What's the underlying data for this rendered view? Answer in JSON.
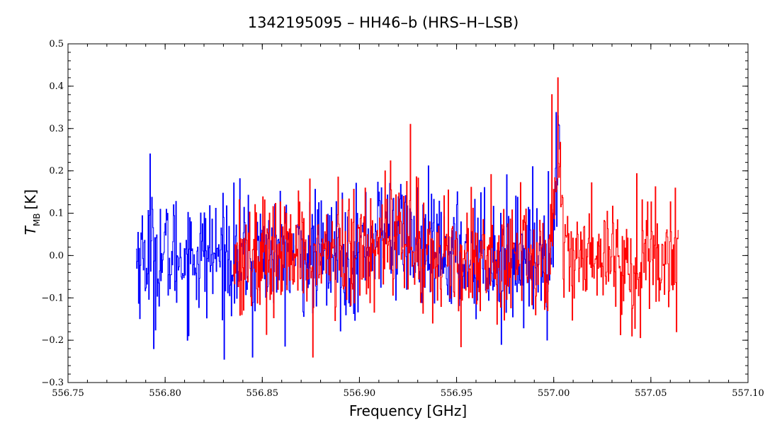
{
  "chart_data": {
    "type": "line",
    "title": "1342195095 – HH46–b (HRS–H–LSB)",
    "xlabel": "Frequency [GHz]",
    "ylabel_main": "T",
    "ylabel_sub": "MB",
    "ylabel_unit": "[K]",
    "xlim": [
      556.75,
      557.1
    ],
    "ylim": [
      -0.3,
      0.5
    ],
    "xticks": [
      556.75,
      556.8,
      556.85,
      556.9,
      556.95,
      557.0,
      557.05,
      557.1
    ],
    "xtick_labels": [
      "556.75",
      "556.80",
      "556.85",
      "556.90",
      "556.95",
      "557.00",
      "557.05",
      "557.10"
    ],
    "yticks": [
      -0.3,
      -0.2,
      -0.1,
      0.0,
      0.1,
      0.2,
      0.3,
      0.4,
      0.5
    ],
    "ytick_labels": [
      "−0.3",
      "−0.2",
      "−0.1",
      "0.0",
      "0.1",
      "0.2",
      "0.3",
      "0.4",
      "0.5"
    ],
    "grid": false,
    "legend": "none",
    "series": [
      {
        "color": "#0000ff",
        "x_range": [
          556.785,
          557.003
        ],
        "noise_rms": 0.07,
        "features": [
          {
            "x": 556.792,
            "y": 0.24
          },
          {
            "x": 556.794,
            "y": -0.22
          },
          {
            "x": 556.845,
            "y": -0.24
          },
          {
            "x": 556.91,
            "y": 0.15
          },
          {
            "x": 556.973,
            "y": -0.21
          },
          {
            "x": 557.002,
            "y": 0.33
          }
        ]
      },
      {
        "color": "#ff0000",
        "x_range": [
          556.835,
          557.064
        ],
        "noise_rms": 0.07,
        "features": [
          {
            "x": 556.876,
            "y": -0.24
          },
          {
            "x": 556.926,
            "y": 0.31
          },
          {
            "x": 556.913,
            "y": 0.2
          },
          {
            "x": 557.002,
            "y": 0.42
          },
          {
            "x": 556.999,
            "y": 0.38
          },
          {
            "x": 557.04,
            "y": -0.19
          },
          {
            "x": 557.063,
            "y": -0.18
          }
        ]
      }
    ]
  },
  "colors": {
    "axis": "#000000",
    "series_blue": "#0000ff",
    "series_red": "#ff0000",
    "background": "#ffffff"
  }
}
